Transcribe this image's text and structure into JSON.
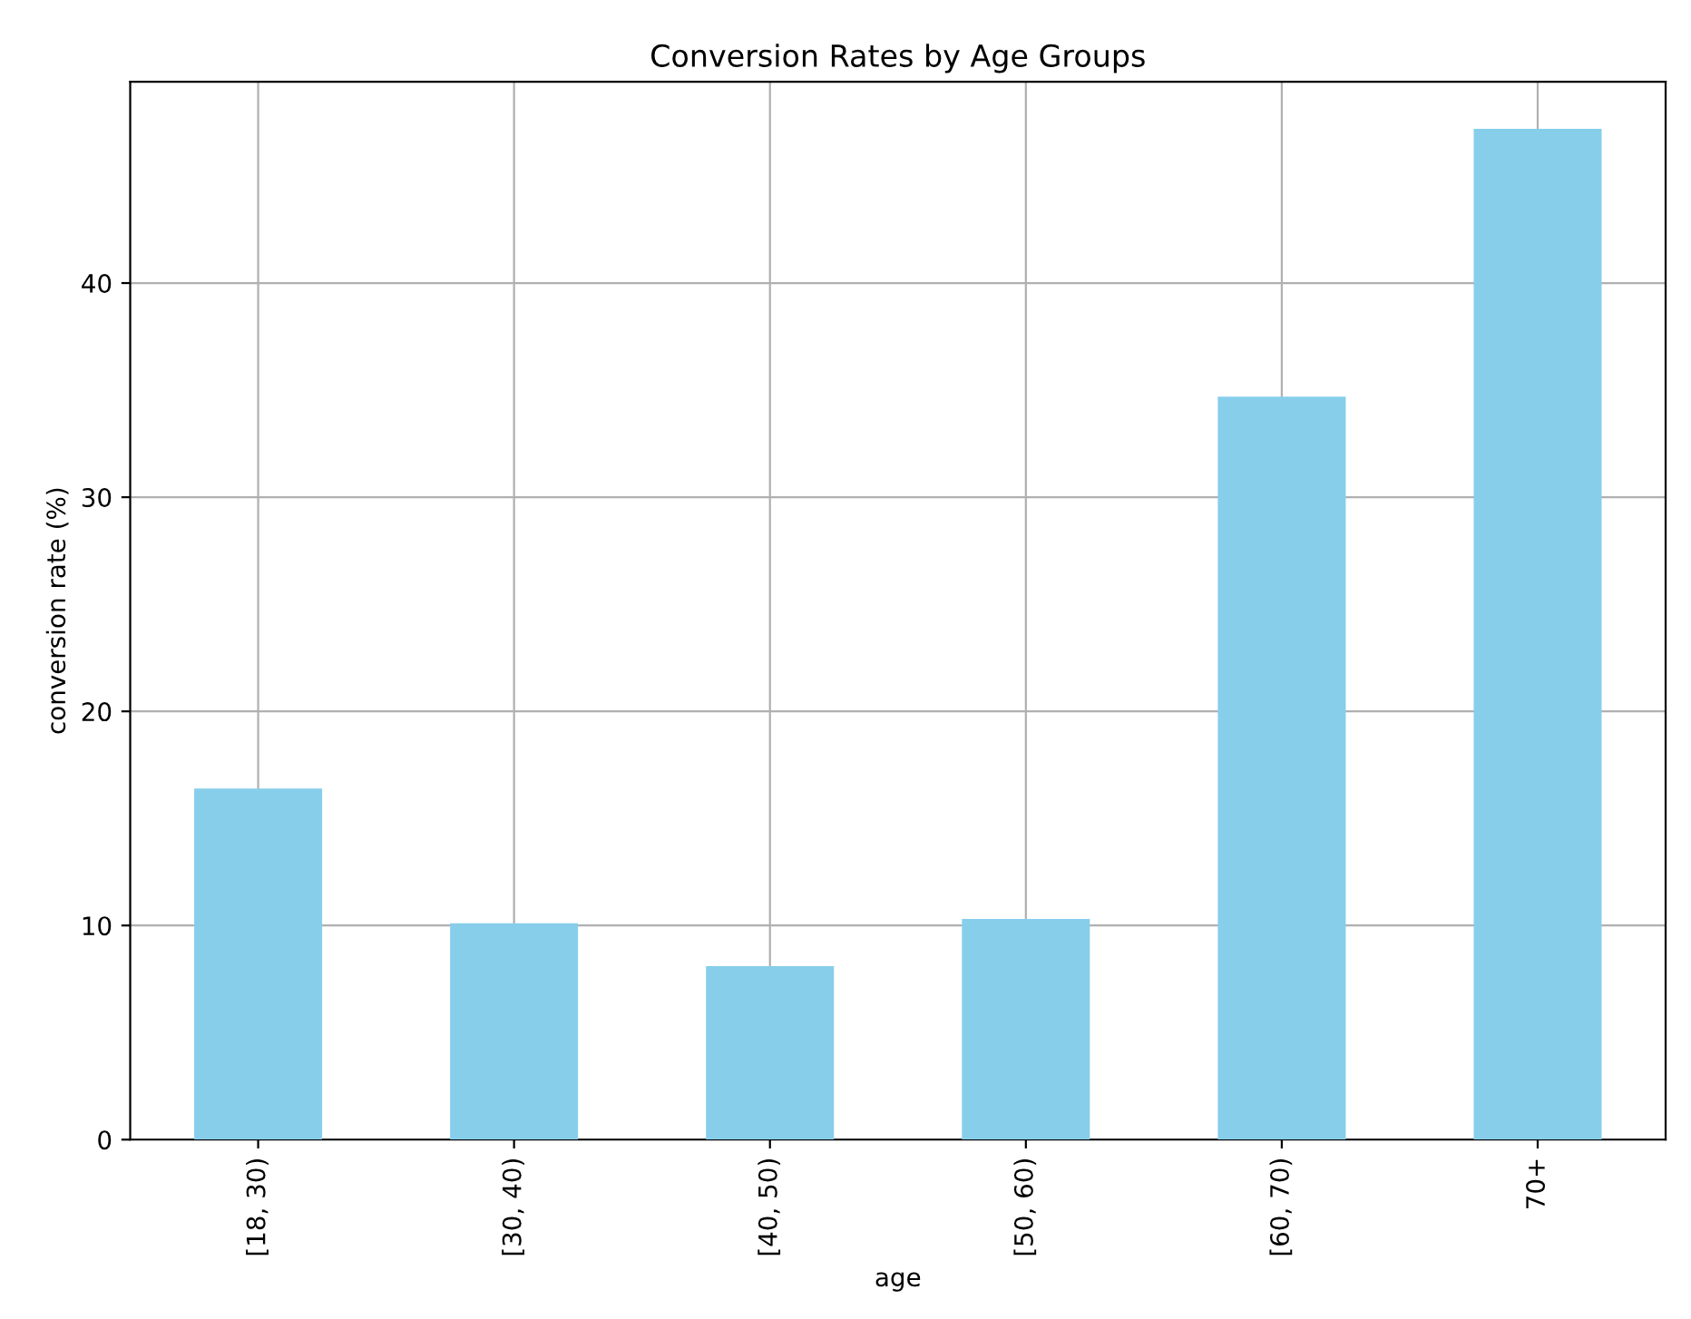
{
  "chart_data": {
    "type": "bar",
    "title": "Conversion Rates by Age Groups",
    "xlabel": "age",
    "ylabel": "conversion rate (%)",
    "categories": [
      "[18, 30)",
      "[30, 40)",
      "[40, 50)",
      "[50, 60)",
      "[60, 70)",
      "70+"
    ],
    "values": [
      16.4,
      10.1,
      8.1,
      10.3,
      34.7,
      47.2
    ],
    "color": "#87ceeb",
    "ylim": [
      0,
      49.4
    ],
    "yticks": [
      0,
      10,
      20,
      30,
      40
    ],
    "grid": true
  }
}
